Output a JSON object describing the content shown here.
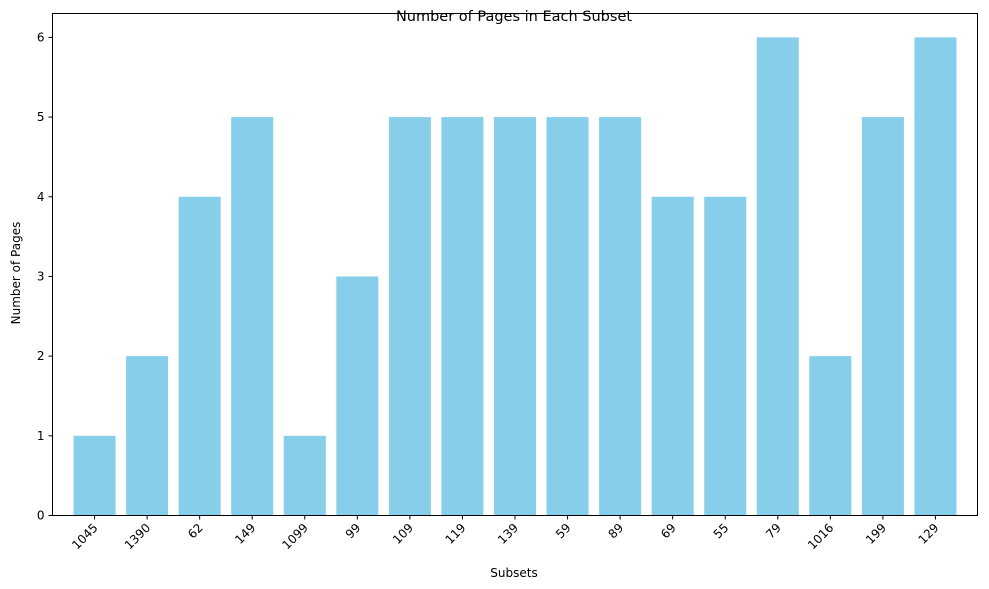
{
  "chart_data": {
    "type": "bar",
    "title": "Number of Pages in Each Subset",
    "xlabel": "Subsets",
    "ylabel": "Number of Pages",
    "categories": [
      "1045",
      "1390",
      "62",
      "149",
      "1099",
      "99",
      "109",
      "119",
      "139",
      "59",
      "89",
      "69",
      "55",
      "79",
      "1016",
      "199",
      "129"
    ],
    "values": [
      1,
      2,
      4,
      5,
      1,
      3,
      5,
      5,
      5,
      5,
      5,
      4,
      4,
      6,
      2,
      5,
      6
    ],
    "ylim": [
      0,
      6.3
    ],
    "yticks": [
      0,
      1,
      2,
      3,
      4,
      5,
      6
    ],
    "bar_color": "#87CEEB",
    "grid": false,
    "legend": "none"
  }
}
